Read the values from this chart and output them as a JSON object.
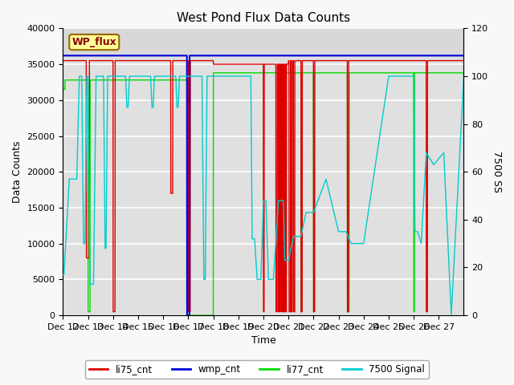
{
  "title": "West Pond Flux Data Counts",
  "xlabel": "Time",
  "ylabel_left": "Data Counts",
  "ylabel_right": "7500 SS",
  "ylim_left": [
    0,
    40000
  ],
  "ylim_right": [
    0,
    120
  ],
  "x_tick_labels": [
    "Dec 12",
    "Dec 13",
    "Dec 14",
    "Dec 15",
    "Dec 16",
    "Dec 17",
    "Dec 18",
    "Dec 19",
    "Dec 20",
    "Dec 21",
    "Dec 22",
    "Dec 23",
    "Dec 24",
    "Dec 25",
    "Dec 26",
    "Dec 27"
  ],
  "yticks_left": [
    0,
    5000,
    10000,
    15000,
    20000,
    25000,
    30000,
    35000,
    40000
  ],
  "yticks_right": [
    0,
    20,
    40,
    60,
    80,
    100,
    120
  ],
  "colors": {
    "li75_cnt": "#dd0000",
    "wmp_cnt": "#0000dd",
    "li77_cnt": "#00dd00",
    "signal_7500": "#00cccc"
  },
  "legend_label_box": "WP_flux",
  "legend_box_facecolor": "#ffff99",
  "legend_box_edgecolor": "#996600",
  "plot_bg": "#e0e0e0",
  "fig_bg": "#f8f8f8",
  "grid_color": "#ffffff",
  "upper_band_color": "#d8d8d8"
}
